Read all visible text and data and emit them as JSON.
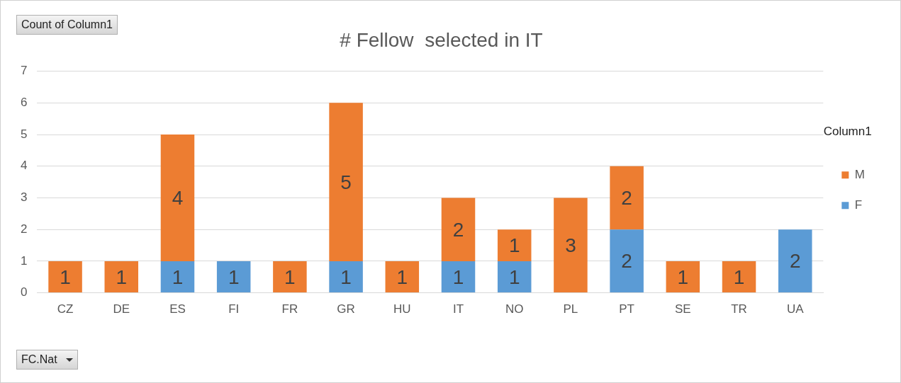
{
  "chart_data": {
    "type": "bar",
    "title": "# Fellow  selected in IT",
    "ylabel": "Count of Column1",
    "xlabel": "FC.Nat",
    "legend_title": "Column1",
    "categories": [
      "CZ",
      "DE",
      "ES",
      "FI",
      "FR",
      "GR",
      "HU",
      "IT",
      "NO",
      "PL",
      "PT",
      "SE",
      "TR",
      "UA"
    ],
    "series": [
      {
        "name": "F",
        "color": "#5b9bd5",
        "values": [
          null,
          null,
          1,
          1,
          null,
          1,
          null,
          1,
          1,
          null,
          2,
          null,
          null,
          2
        ]
      },
      {
        "name": "M",
        "color": "#ed7d31",
        "values": [
          1,
          1,
          4,
          null,
          1,
          5,
          1,
          2,
          1,
          3,
          2,
          1,
          1,
          null
        ]
      }
    ],
    "stacked": true,
    "ylim": [
      0,
      7
    ],
    "yticks": [
      0,
      1,
      2,
      3,
      4,
      5,
      6,
      7
    ],
    "grid": "y",
    "legend": "right",
    "data_labels": true
  }
}
